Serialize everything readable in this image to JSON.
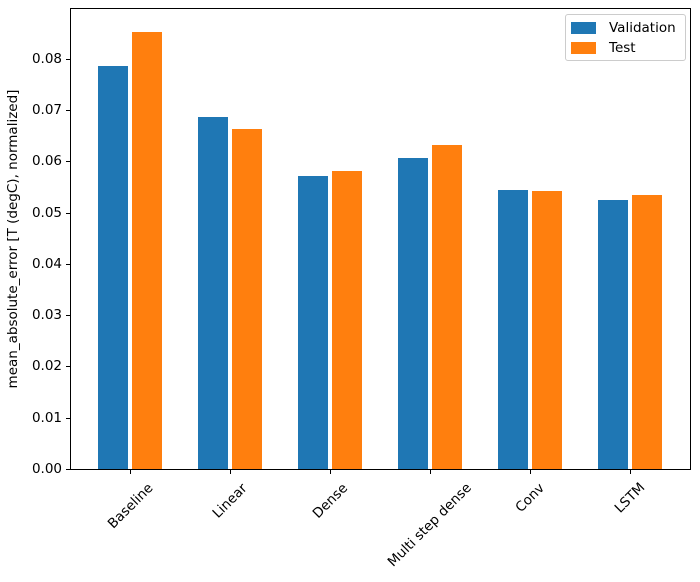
{
  "chart_data": {
    "type": "bar",
    "title": "",
    "xlabel": "",
    "ylabel": "mean_absolute_error [T (degC), normalized]",
    "categories": [
      "Baseline",
      "Linear",
      "Dense",
      "Multi step dense",
      "Conv",
      "LSTM"
    ],
    "series": [
      {
        "name": "Validation",
        "color": "#1f77b4",
        "values": [
          0.0785,
          0.0686,
          0.0572,
          0.0606,
          0.0545,
          0.0524
        ]
      },
      {
        "name": "Test",
        "color": "#ff7f0e",
        "values": [
          0.0852,
          0.0663,
          0.0582,
          0.0632,
          0.0543,
          0.0534
        ]
      }
    ],
    "ylim": [
      0,
      0.0897
    ],
    "yticks": [
      0.0,
      0.01,
      0.02,
      0.03,
      0.04,
      0.05,
      0.06,
      0.07,
      0.08
    ],
    "ytick_labels": [
      "0.00",
      "0.01",
      "0.02",
      "0.03",
      "0.04",
      "0.05",
      "0.06",
      "0.07",
      "0.08"
    ],
    "xtick_rotation": 45,
    "grid": false,
    "legend": {
      "position": "upper right",
      "entries": [
        "Validation",
        "Test"
      ]
    }
  }
}
